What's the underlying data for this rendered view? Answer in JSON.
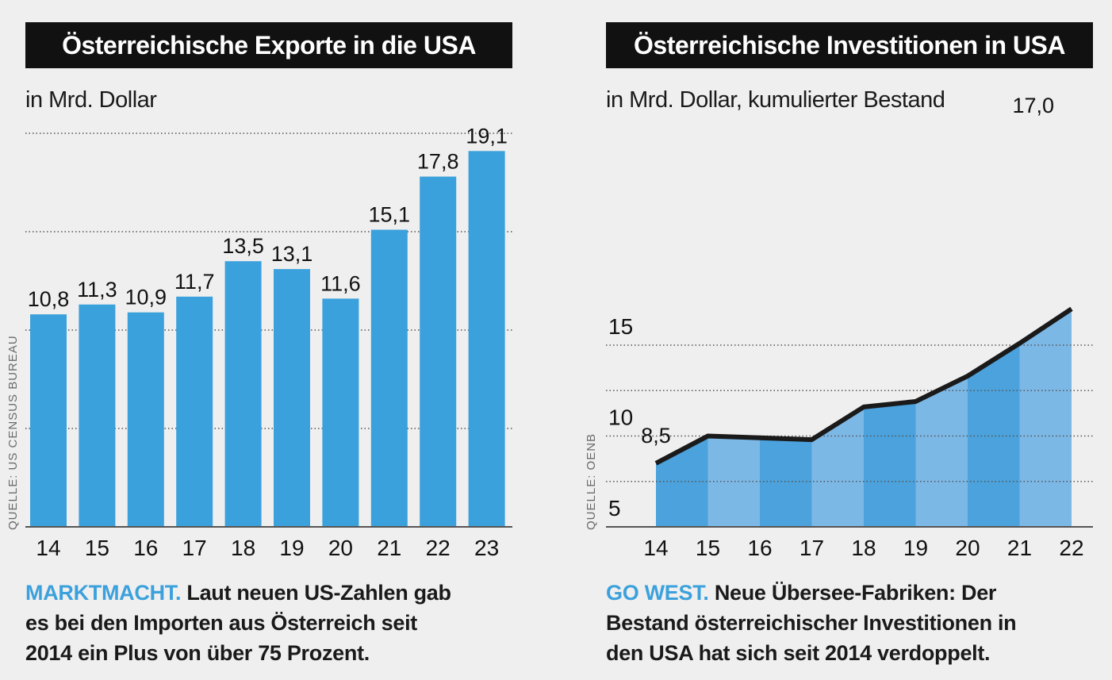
{
  "colors": {
    "accent": "#3ba1dc",
    "bar": "#3ba1dc",
    "area_dark": "#4ba2dc",
    "area_light": "#7cb8e6",
    "line": "#1a1a1a",
    "title_bg": "#111111"
  },
  "left": {
    "title": "Österreichische Exporte in die USA",
    "unit": "in Mrd. Dollar",
    "source": "QUELLE: US CENSUS BUREAU",
    "caption_kicker": "MARKTMACHT.",
    "caption_line1": "Laut neuen US-Zahlen gab",
    "caption_line2": "es bei den Importen aus Österreich seit",
    "caption_line3": "2014 ein Plus von über 75 Prozent."
  },
  "right": {
    "title": "Österreichische Investitionen in USA",
    "unit": "in Mrd. Dollar, kumulierter Bestand",
    "source": "QUELLE: OENB",
    "caption_kicker": "GO WEST.",
    "caption_line1": "Neue Übersee-Fabriken: Der",
    "caption_line2": "Bestand österreichischer Investitionen in",
    "caption_line3": "den USA hat sich seit 2014 verdoppelt."
  },
  "chart_data": [
    {
      "type": "bar",
      "title": "Österreichische Exporte in die USA",
      "ylabel": "in Mrd. Dollar",
      "categories": [
        "14",
        "15",
        "16",
        "17",
        "18",
        "19",
        "20",
        "21",
        "22",
        "23"
      ],
      "values": [
        10.8,
        11.3,
        10.9,
        11.7,
        13.5,
        13.1,
        11.6,
        15.1,
        17.8,
        19.1
      ],
      "value_labels": [
        "10,8",
        "11,3",
        "10,9",
        "11,7",
        "13,5",
        "13,1",
        "11,6",
        "15,1",
        "17,8",
        "19,1"
      ],
      "ylim": [
        0,
        20
      ],
      "grid": true
    },
    {
      "type": "area",
      "title": "Österreichische Investitionen in USA",
      "ylabel": "in Mrd. Dollar, kumulierter Bestand",
      "x": [
        "14",
        "15",
        "16",
        "17",
        "18",
        "19",
        "20",
        "21",
        "22"
      ],
      "values": [
        8.5,
        10.0,
        9.9,
        9.8,
        11.6,
        11.9,
        13.3,
        15.1,
        17.0
      ],
      "annotations": [
        {
          "x": "14",
          "text": "8,5"
        },
        {
          "x": "22",
          "text": "17,0"
        }
      ],
      "yticks": [
        5,
        10,
        15
      ],
      "ytick_labels": [
        "5",
        "10",
        "15"
      ],
      "ylim": [
        5,
        17.5
      ],
      "grid": true
    }
  ]
}
